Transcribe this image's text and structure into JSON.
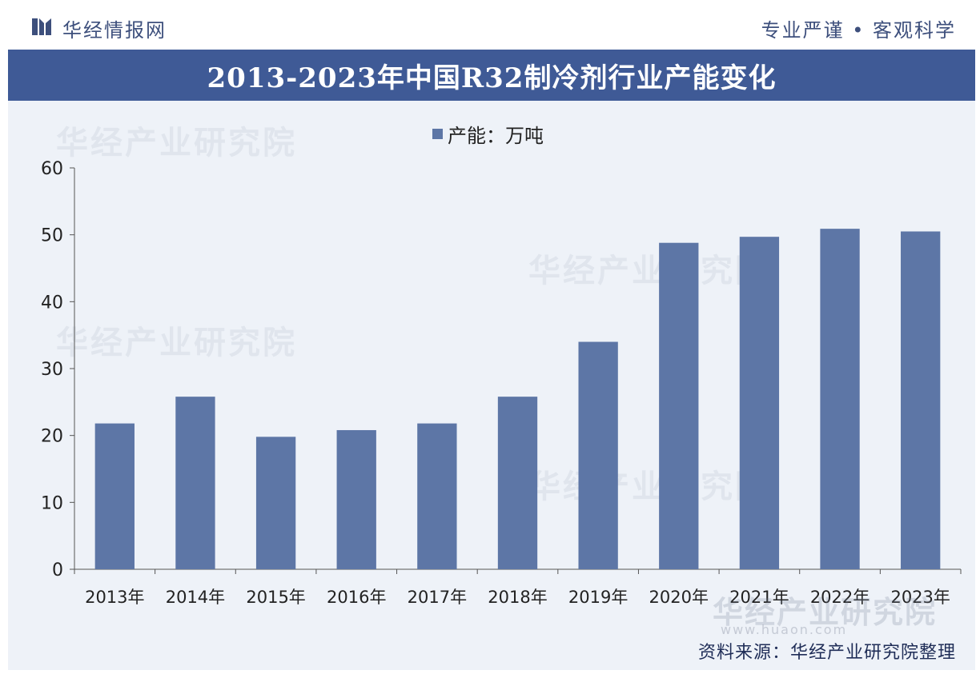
{
  "header": {
    "brand": "华经情报网",
    "slogan": "专业严谨 • 客观科学",
    "title": "2013-2023年中国R32制冷剂行业产能变化"
  },
  "watermark": {
    "text": "华经产业研究院",
    "url": "www.huaon.com"
  },
  "footer": {
    "source": "资料来源：华经产业研究院整理"
  },
  "colors": {
    "bar": "#5d76a6",
    "title_band": "#3f5a96",
    "brand": "#3d4f7c"
  },
  "chart_data": {
    "type": "bar",
    "categories": [
      "2013年",
      "2014年",
      "2015年",
      "2016年",
      "2017年",
      "2018年",
      "2019年",
      "2020年",
      "2021年",
      "2022年",
      "2023年"
    ],
    "series": [
      {
        "name": "产能：万吨",
        "values": [
          21.8,
          25.8,
          19.8,
          20.8,
          21.8,
          25.8,
          34.0,
          48.8,
          49.7,
          50.9,
          50.5
        ]
      }
    ],
    "yticks": [
      "0",
      "10",
      "20",
      "30",
      "40",
      "50",
      "60"
    ],
    "ylim": [
      0,
      60
    ],
    "legend": "top-center",
    "grid": false
  }
}
